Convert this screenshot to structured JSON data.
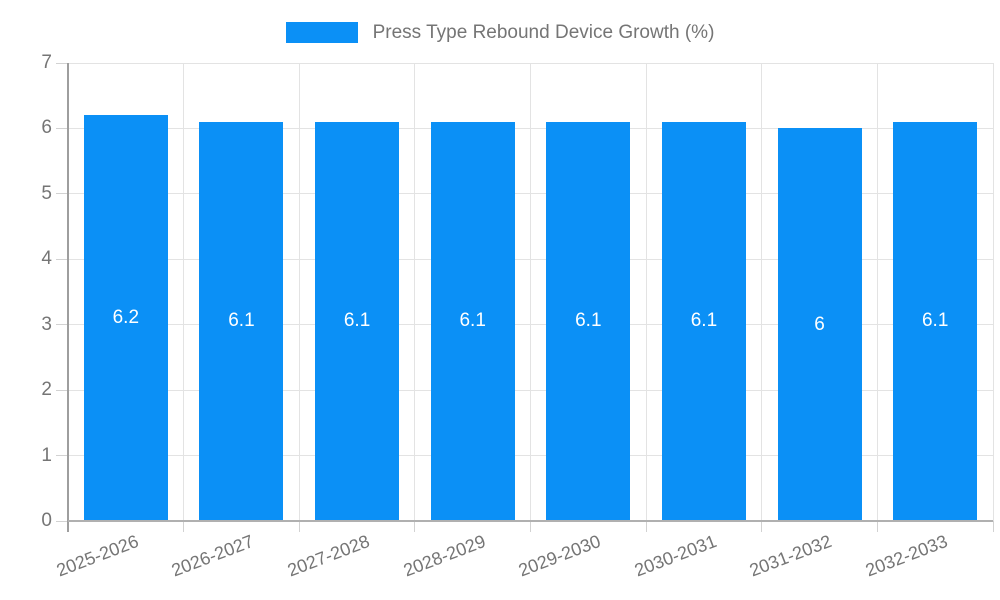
{
  "legend": {
    "label": "Press Type Rebound Device Growth (%)"
  },
  "chart_data": {
    "type": "bar",
    "title": "Press Type Rebound Device Growth (%)",
    "categories": [
      "2025-2026",
      "2026-2027",
      "2027-2028",
      "2028-2029",
      "2029-2030",
      "2030-2031",
      "2031-2032",
      "2032-2033"
    ],
    "values": [
      6.2,
      6.1,
      6.1,
      6.1,
      6.1,
      6.1,
      6,
      6.1
    ],
    "bar_labels": [
      "6.2",
      "6.1",
      "6.1",
      "6.1",
      "6.1",
      "6.1",
      "6",
      "6.1"
    ],
    "xlabel": "",
    "ylabel": "",
    "ylim": [
      0,
      7
    ],
    "yticks": [
      "0",
      "1",
      "2",
      "3",
      "4",
      "5",
      "6",
      "7"
    ],
    "grid": true,
    "legend_position": "top"
  },
  "colors": {
    "bar": "#0b90f6",
    "grid": "#e3e3e3",
    "axis_line": "#9e9e9e",
    "baseline": "#b0b0b0",
    "tick": "#d2d2d2",
    "axis_text": "#757575",
    "legend_text": "#757575",
    "value_text": "#ffffff",
    "background": "#ffffff"
  }
}
